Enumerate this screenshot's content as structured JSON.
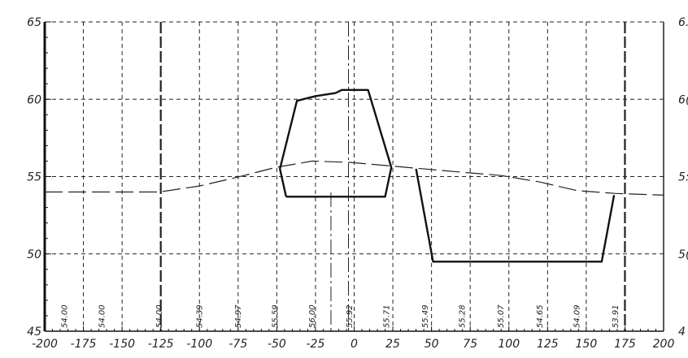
{
  "chart_data": {
    "type": "line",
    "title": "",
    "xlabel": "",
    "ylabel": "",
    "xlim": [
      -200,
      200
    ],
    "ylim": [
      45,
      65
    ],
    "x_ticks": [
      "-200",
      "-175",
      "-150",
      "-125",
      "-100",
      "-75",
      "-50",
      "-25",
      "0",
      "25",
      "50",
      "75",
      "100",
      "125",
      "150",
      "175",
      "200"
    ],
    "y_ticks": [
      "45",
      "50",
      "55",
      "60",
      "65"
    ],
    "right_y_ticks": [
      "4",
      "5(",
      "5:",
      "6(",
      "6."
    ],
    "grid": true,
    "elevation_labels": [
      {
        "x": -187,
        "text": "54.00"
      },
      {
        "x": -163,
        "text": "54.00"
      },
      {
        "x": -126,
        "text": "54.00"
      },
      {
        "x": -100,
        "text": "54.39"
      },
      {
        "x": -75,
        "text": "54.97"
      },
      {
        "x": -51,
        "text": "55.59"
      },
      {
        "x": -27,
        "text": "56.00"
      },
      {
        "x": -3,
        "text": "55.92"
      },
      {
        "x": 21,
        "text": "55.71"
      },
      {
        "x": 46,
        "text": "55.49"
      },
      {
        "x": 70,
        "text": "55.28"
      },
      {
        "x": 95,
        "text": "55.07"
      },
      {
        "x": 120,
        "text": "54.65"
      },
      {
        "x": 144,
        "text": "54.09"
      },
      {
        "x": 169,
        "text": "53.91"
      }
    ],
    "series": [
      {
        "style": "dashed",
        "points": [
          [
            -200,
            54.0
          ],
          [
            -126,
            54.0
          ],
          [
            -100,
            54.39
          ],
          [
            -75,
            54.97
          ],
          [
            -51,
            55.59
          ],
          [
            -27,
            56.0
          ],
          [
            -3,
            55.92
          ],
          [
            21,
            55.71
          ],
          [
            46,
            55.49
          ],
          [
            70,
            55.28
          ],
          [
            95,
            55.07
          ],
          [
            120,
            54.65
          ],
          [
            144,
            54.09
          ],
          [
            169,
            53.91
          ],
          [
            200,
            53.8
          ]
        ]
      },
      {
        "style": "solid",
        "points": [
          [
            -44,
            53.7
          ],
          [
            -48,
            55.5
          ],
          [
            -37,
            59.9
          ],
          [
            -25,
            60.2
          ],
          [
            -12,
            60.4
          ],
          [
            -8,
            60.6
          ],
          [
            9,
            60.6
          ],
          [
            24,
            55.6
          ],
          [
            20,
            53.7
          ],
          [
            -44,
            53.7
          ]
        ]
      },
      {
        "style": "solid",
        "points": [
          [
            40,
            55.5
          ],
          [
            51,
            49.5
          ],
          [
            160,
            49.5
          ],
          [
            168,
            53.8
          ]
        ]
      }
    ]
  }
}
